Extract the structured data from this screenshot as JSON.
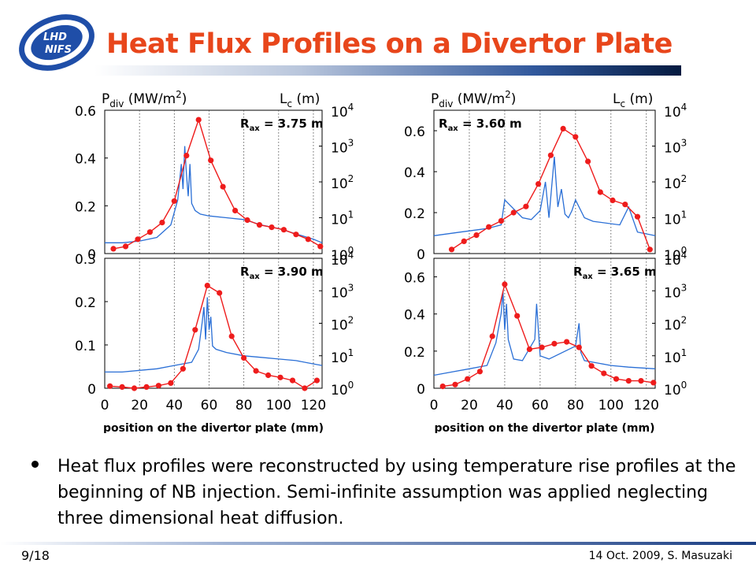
{
  "slide": {
    "title": "Heat Flux Profiles on a Divertor Plate",
    "logo_text_top": "LHD",
    "logo_text_bottom": "NIFS",
    "bullet": "Heat flux profiles were reconstructed by using temperature rise profiles at the beginning of NB injection. Semi-infinite assumption was applied neglecting three dimensional heat diffusion.",
    "page_number": "9/18",
    "footer": "14 Oct. 2009, S. Masuzaki"
  },
  "colors": {
    "title": "#e8461b",
    "pdiv": "#ee1c1c",
    "lc": "#2a6fd6"
  },
  "chart_data": [
    {
      "type": "line",
      "panel": "top-left",
      "ylabel_left": "P_div (MW/m^2)",
      "ylabel_right": "L_c (m)",
      "annotation": "R_ax = 3.75 m",
      "xlim": [
        0,
        125
      ],
      "ylim": [
        0,
        0.6
      ],
      "y_ticks": [
        "0",
        "0.2",
        "0.4",
        "0.6"
      ],
      "y2_ticks": [
        "10^0",
        "10^1",
        "10^2",
        "10^3",
        "10^4"
      ],
      "y2_log_range": [
        0,
        4
      ],
      "x_gridlines": [
        20,
        40,
        60,
        80,
        100,
        120
      ],
      "series": [
        {
          "x": [
            5,
            12,
            19,
            26,
            33,
            40,
            47,
            54,
            61,
            68,
            75,
            82,
            89,
            96,
            103,
            110,
            117,
            124
          ],
          "y": [
            0.02,
            0.03,
            0.06,
            0.09,
            0.13,
            0.22,
            0.41,
            0.56,
            0.39,
            0.28,
            0.18,
            0.14,
            0.12,
            0.11,
            0.1,
            0.08,
            0.06,
            0.03
          ]
        },
        {
          "x": [
            0,
            10,
            20,
            30,
            38,
            42,
            44,
            45,
            46,
            47,
            48,
            49,
            50,
            52,
            55,
            60,
            70,
            80,
            90,
            100,
            110,
            120,
            125
          ],
          "y": [
            0.3,
            0.3,
            0.35,
            0.45,
            0.8,
            1.5,
            2.5,
            1.8,
            3.0,
            2.2,
            1.6,
            2.5,
            1.4,
            1.2,
            1.1,
            1.05,
            1.0,
            0.95,
            0.8,
            0.7,
            0.55,
            0.4,
            0.3
          ]
        }
      ]
    },
    {
      "type": "line",
      "panel": "bottom-left",
      "annotation": "R_ax = 3.90 m",
      "xlim": [
        0,
        125
      ],
      "ylim": [
        0,
        0.3
      ],
      "y_ticks": [
        "0",
        "0.1",
        "0.2",
        "0.3"
      ],
      "y2_ticks": [
        "10^0",
        "10^1",
        "10^2",
        "10^3",
        "10^4"
      ],
      "y2_log_range": [
        0,
        4
      ],
      "x_ticks": [
        "0",
        "20",
        "40",
        "60",
        "80",
        "100",
        "120"
      ],
      "xlabel": "position on the divertor plate (mm)",
      "x_gridlines": [
        20,
        40,
        60,
        80,
        100,
        120
      ],
      "series": [
        {
          "x": [
            3,
            10,
            17,
            24,
            31,
            38,
            45,
            52,
            59,
            66,
            73,
            80,
            87,
            94,
            101,
            108,
            115,
            122
          ],
          "y": [
            0.005,
            0.003,
            0.0,
            0.003,
            0.006,
            0.012,
            0.045,
            0.135,
            0.237,
            0.22,
            0.12,
            0.07,
            0.04,
            0.03,
            0.025,
            0.018,
            0.0,
            0.018
          ]
        },
        {
          "x": [
            0,
            10,
            20,
            30,
            40,
            50,
            54,
            56,
            57,
            58,
            59,
            60,
            61,
            62,
            64,
            70,
            80,
            90,
            100,
            110,
            120,
            125
          ],
          "y": [
            0.5,
            0.5,
            0.55,
            0.6,
            0.7,
            0.8,
            1.2,
            2.0,
            2.5,
            1.5,
            2.8,
            1.8,
            2.2,
            1.3,
            1.2,
            1.1,
            1.0,
            0.95,
            0.9,
            0.85,
            0.75,
            0.7
          ]
        }
      ]
    },
    {
      "type": "line",
      "panel": "top-right",
      "ylabel_left": "P_div (MW/m^2)",
      "ylabel_right": "L_c (m)",
      "annotation": "R_ax = 3.60 m",
      "xlim": [
        0,
        125
      ],
      "ylim": [
        0,
        0.7
      ],
      "y_ticks": [
        "0",
        "0.2",
        "0.4",
        "0.6"
      ],
      "y_tick_values": [
        0,
        0.2,
        0.4,
        0.6
      ],
      "y2_ticks": [
        "10^0",
        "10^1",
        "10^2",
        "10^3",
        "10^4"
      ],
      "y2_log_range": [
        0,
        4
      ],
      "x_gridlines": [
        20,
        40,
        60,
        80,
        100,
        120
      ],
      "series": [
        {
          "x": [
            10,
            17,
            24,
            31,
            38,
            45,
            52,
            59,
            66,
            73,
            80,
            87,
            94,
            101,
            108,
            115,
            122
          ],
          "y": [
            0.02,
            0.06,
            0.09,
            0.13,
            0.16,
            0.2,
            0.23,
            0.34,
            0.48,
            0.61,
            0.57,
            0.45,
            0.3,
            0.26,
            0.24,
            0.18,
            0.02
          ]
        },
        {
          "x": [
            0,
            15,
            30,
            38,
            40,
            50,
            55,
            60,
            63,
            65,
            68,
            70,
            72,
            74,
            76,
            78,
            80,
            85,
            90,
            105,
            110,
            115,
            125
          ],
          "y": [
            0.5,
            0.6,
            0.7,
            0.8,
            1.5,
            1.0,
            0.95,
            1.2,
            2.0,
            1.0,
            2.7,
            1.3,
            1.8,
            1.1,
            1.0,
            1.2,
            1.5,
            1.0,
            0.9,
            0.8,
            1.3,
            0.6,
            0.5
          ]
        }
      ]
    },
    {
      "type": "line",
      "panel": "bottom-right",
      "annotation": "R_ax = 3.65 m",
      "xlim": [
        0,
        125
      ],
      "ylim": [
        0,
        0.7
      ],
      "y_ticks": [
        "0",
        "0.2",
        "0.4",
        "0.6"
      ],
      "y_tick_values": [
        0,
        0.2,
        0.4,
        0.6
      ],
      "y2_ticks": [
        "10^0",
        "10^1",
        "10^2",
        "10^3",
        "10^4"
      ],
      "y2_log_range": [
        0,
        4
      ],
      "x_ticks": [
        "0",
        "20",
        "40",
        "60",
        "80",
        "100",
        "120"
      ],
      "xlabel": "position on the divertor plate (mm)",
      "x_gridlines": [
        20,
        40,
        60,
        80,
        100,
        120
      ],
      "series": [
        {
          "x": [
            5,
            12,
            19,
            26,
            33,
            40,
            47,
            54,
            61,
            68,
            75,
            82,
            89,
            96,
            103,
            110,
            117,
            124
          ],
          "y": [
            0.01,
            0.02,
            0.05,
            0.09,
            0.28,
            0.56,
            0.39,
            0.21,
            0.22,
            0.24,
            0.25,
            0.22,
            0.12,
            0.08,
            0.05,
            0.04,
            0.04,
            0.03
          ]
        },
        {
          "x": [
            0,
            10,
            20,
            30,
            35,
            38,
            39,
            40,
            41,
            42,
            45,
            50,
            57,
            58,
            60,
            65,
            80,
            82,
            83,
            85,
            90,
            100,
            110,
            125
          ],
          "y": [
            0.4,
            0.5,
            0.6,
            0.7,
            1.4,
            2.3,
            3.0,
            1.8,
            2.6,
            1.5,
            0.9,
            0.85,
            1.5,
            2.6,
            1.0,
            0.9,
            1.3,
            2.0,
            1.1,
            0.85,
            0.8,
            0.7,
            0.65,
            0.6
          ]
        }
      ]
    }
  ]
}
